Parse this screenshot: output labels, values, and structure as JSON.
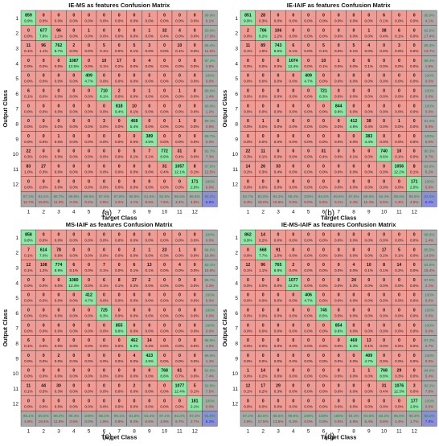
{
  "figure": {
    "xlabel": "Target Class",
    "ylabel": "Output Class",
    "tick_labels": [
      "1",
      "2",
      "3",
      "4",
      "5",
      "6",
      "7",
      "8",
      "9",
      "10",
      "11",
      "12"
    ]
  },
  "colors": {
    "diag_cell": "#90e6a6",
    "off_cell": "#f19b95",
    "summary_cell": "#a9a9a9",
    "total_cell": "#8a8fd8",
    "grid_line": "#333333",
    "text": "#111111",
    "pct_green": "#1a8a2c",
    "pct_red": "#b3201a",
    "pct_blue": "#2222cc"
  },
  "chart_data": [
    {
      "type": "heatmap",
      "title": "IE-MS as features Confusion Matrix",
      "caption": "(a)",
      "counts": [
        [
          859,
          0,
          0,
          0,
          0,
          0,
          0,
          0,
          1,
          0,
          0,
          0
        ],
        [
          0,
          677,
          96,
          0,
          1,
          0,
          0,
          0,
          1,
          32,
          4,
          0
        ],
        [
          11,
          96,
          762,
          2,
          0,
          5,
          0,
          5,
          3,
          0,
          10,
          0
        ],
        [
          0,
          0,
          0,
          1087,
          0,
          10,
          17,
          0,
          4,
          0,
          0,
          0
        ],
        [
          0,
          0,
          0,
          0,
          409,
          0,
          0,
          0,
          0,
          0,
          0,
          0
        ],
        [
          6,
          0,
          0,
          0,
          0,
          710,
          2,
          0,
          1,
          0,
          1,
          0
        ],
        [
          0,
          0,
          0,
          0,
          0,
          0,
          818,
          10,
          0,
          0,
          0,
          0
        ],
        [
          0,
          0,
          0,
          0,
          0,
          3,
          0,
          468,
          0,
          0,
          1,
          0
        ],
        [
          0,
          0,
          1,
          0,
          0,
          0,
          0,
          0,
          389,
          0,
          0,
          0
        ],
        [
          22,
          0,
          0,
          0,
          0,
          0,
          0,
          5,
          7,
          772,
          31,
          0
        ],
        [
          83,
          27,
          0,
          0,
          0,
          0,
          0,
          0,
          0,
          31,
          1057,
          8
        ],
        [
          0,
          0,
          0,
          0,
          0,
          0,
          0,
          0,
          0,
          0,
          0,
          171
        ]
      ],
      "row_pct": [
        "99.9%",
        "83.0%",
        "85.4%",
        "97.2%",
        "100%",
        "98.6%",
        "98.8%",
        "99.1%",
        "99.7%",
        "92.7%",
        "87.5%",
        "100%"
      ],
      "row_err": [
        "0.1%",
        "17.0%",
        "14.6%",
        "2.8%",
        "0.0%",
        "1.4%",
        "1.2%",
        "0.9%",
        "0.3%",
        "7.3%",
        "12.5%",
        "0.0%"
      ],
      "col_pct": [
        "87.3%",
        "84.2%",
        "88.7%",
        "99.8%",
        "99.8%",
        "97.5%",
        "97.8%",
        "95.9%",
        "91.5%",
        "92.5%",
        "95.6%",
        "95.5%"
      ],
      "col_err": [
        "12.7%",
        "15.8%",
        "11.3%",
        "0.2%",
        "0.2%",
        "2.5%",
        "2.2%",
        "4.1%",
        "8.5%",
        "7.5%",
        "4.4%",
        "4.5%"
      ],
      "total_pct": "93.2%",
      "total_err": "6.8%"
    },
    {
      "type": "heatmap",
      "title": "IE-IAIF as features Confusion Matrix",
      "caption": "(b)",
      "counts": [
        [
          851,
          28,
          0,
          0,
          0,
          0,
          0,
          0,
          0,
          6,
          0,
          0
        ],
        [
          2,
          706,
          106,
          0,
          0,
          0,
          0,
          0,
          1,
          38,
          6,
          0
        ],
        [
          11,
          89,
          743,
          6,
          0,
          5,
          0,
          5,
          4,
          0,
          3,
          0
        ],
        [
          0,
          0,
          0,
          1074,
          0,
          10,
          1,
          0,
          6,
          0,
          0,
          0
        ],
        [
          0,
          0,
          0,
          0,
          409,
          0,
          0,
          0,
          0,
          0,
          0,
          0
        ],
        [
          0,
          0,
          0,
          0,
          0,
          721,
          0,
          0,
          0,
          0,
          0,
          0
        ],
        [
          0,
          0,
          0,
          0,
          0,
          0,
          844,
          0,
          0,
          0,
          0,
          0
        ],
        [
          0,
          1,
          0,
          0,
          0,
          0,
          0,
          412,
          38,
          0,
          1,
          0
        ],
        [
          0,
          0,
          0,
          0,
          0,
          0,
          0,
          0,
          383,
          0,
          0,
          0
        ],
        [
          22,
          11,
          0,
          0,
          0,
          31,
          0,
          5,
          0,
          740,
          10,
          0
        ],
        [
          14,
          26,
          33,
          0,
          0,
          0,
          0,
          0,
          0,
          0,
          1056,
          8
        ],
        [
          0,
          0,
          0,
          0,
          0,
          0,
          0,
          0,
          0,
          0,
          0,
          171
        ]
      ],
      "row_pct": [
        "95.9%",
        "82.6%",
        "86.3%",
        "98.4%",
        "100%",
        "100%",
        "100%",
        "91.2%",
        "100%",
        "90.3%",
        "93.8%",
        "100%"
      ],
      "row_err": [
        "4.1%",
        "17.4%",
        "13.7%",
        "1.6%",
        "0.0%",
        "0.0%",
        "0.0%",
        "8.8%",
        "0.0%",
        "9.7%",
        "6.2%",
        "0.0%"
      ],
      "col_pct": [
        "94.7%",
        "82.0%",
        "84.2%",
        "99.4%",
        "100%",
        "94.5%",
        "99.9%",
        "97.6%",
        "88.6%",
        "94.4%",
        "98.6%",
        "95.5%"
      ],
      "col_err": [
        "5.3%",
        "18.0%",
        "15.8%",
        "0.6%",
        "0.0%",
        "5.5%",
        "0.1%",
        "2.4%",
        "11.4%",
        "5.6%",
        "1.4%",
        "4.5%"
      ],
      "total_pct": "93.6%",
      "total_err": "6.4%"
    },
    {
      "type": "heatmap",
      "title": "MS-IAIF as features Confusion Matrix",
      "caption": "(c)",
      "counts": [
        [
          858,
          0,
          0,
          0,
          0,
          0,
          0,
          0,
          0,
          0,
          0,
          0
        ],
        [
          7,
          614,
          78,
          0,
          0,
          0,
          0,
          2,
          1,
          23,
          1,
          0
        ],
        [
          12,
          108,
          774,
          6,
          0,
          7,
          0,
          6,
          13,
          0,
          4,
          0
        ],
        [
          0,
          0,
          0,
          1080,
          0,
          6,
          8,
          27,
          2,
          0,
          0,
          0
        ],
        [
          0,
          0,
          0,
          0,
          412,
          0,
          0,
          0,
          0,
          0,
          0,
          0
        ],
        [
          0,
          0,
          0,
          0,
          0,
          725,
          0,
          0,
          0,
          0,
          0,
          0
        ],
        [
          0,
          0,
          0,
          0,
          0,
          0,
          855,
          0,
          0,
          0,
          0,
          0
        ],
        [
          6,
          0,
          0,
          0,
          0,
          0,
          0,
          462,
          14,
          0,
          0,
          0
        ],
        [
          0,
          0,
          2,
          0,
          0,
          0,
          0,
          4,
          423,
          0,
          0,
          0
        ],
        [
          0,
          0,
          0,
          0,
          0,
          0,
          0,
          0,
          0,
          768,
          61,
          0
        ],
        [
          11,
          44,
          30,
          0,
          0,
          0,
          0,
          2,
          0,
          0,
          1077,
          5
        ],
        [
          0,
          0,
          0,
          0,
          0,
          0,
          0,
          0,
          0,
          0,
          0,
          181
        ]
      ],
      "row_pct": [
        "100%",
        "84.0%",
        "83.1%",
        "96.7%",
        "100%",
        "100%",
        "100%",
        "95.8%",
        "98.6%",
        "92.6%",
        "92.5%",
        "100%"
      ],
      "row_err": [
        "0.0%",
        "16.0%",
        "16.9%",
        "3.3%",
        "0.0%",
        "0.0%",
        "0.0%",
        "4.2%",
        "1.4%",
        "7.4%",
        "7.5%",
        "0.0%"
      ],
      "col_pct": [
        "95.1%",
        "80.6%",
        "88.2%",
        "99.4%",
        "100%",
        "98.2%",
        "99.1%",
        "91.8%",
        "93.4%",
        "97.1%",
        "94.3%",
        "97.3%"
      ],
      "col_err": [
        "4.9%",
        "19.4%",
        "11.8%",
        "0.6%",
        "0.0%",
        "1.8%",
        "0.9%",
        "8.2%",
        "6.6%",
        "2.9%",
        "5.7%",
        "2.7%"
      ],
      "total_pct": "91.8%",
      "total_err": "8.2%"
    },
    {
      "type": "heatmap",
      "title": "IE-MS-IAIF as features Confusion Matrix",
      "caption": "(d)",
      "counts": [
        [
          862,
          14,
          0,
          0,
          0,
          0,
          0,
          0,
          0,
          0,
          0,
          0
        ],
        [
          0,
          668,
          91,
          0,
          0,
          0,
          0,
          0,
          0,
          17,
          5,
          0
        ],
        [
          12,
          96,
          765,
          2,
          0,
          0,
          0,
          4,
          10,
          8,
          14,
          0
        ],
        [
          0,
          0,
          0,
          1077,
          0,
          0,
          0,
          24,
          0,
          0,
          0,
          0
        ],
        [
          0,
          0,
          0,
          0,
          406,
          0,
          0,
          0,
          0,
          0,
          0,
          0
        ],
        [
          0,
          0,
          0,
          0,
          0,
          745,
          0,
          0,
          0,
          0,
          0,
          0
        ],
        [
          0,
          0,
          0,
          0,
          0,
          0,
          854,
          0,
          0,
          0,
          0,
          0
        ],
        [
          0,
          0,
          0,
          0,
          0,
          0,
          0,
          469,
          13,
          0,
          0,
          0
        ],
        [
          0,
          0,
          0,
          0,
          0,
          0,
          0,
          0,
          409,
          0,
          0,
          0
        ],
        [
          1,
          14,
          0,
          0,
          0,
          0,
          0,
          1,
          1,
          768,
          29,
          0
        ],
        [
          12,
          17,
          29,
          0,
          0,
          0,
          0,
          0,
          0,
          31,
          1076,
          3
        ],
        [
          0,
          0,
          0,
          0,
          0,
          0,
          0,
          0,
          0,
          0,
          0,
          177
        ]
      ],
      "row_pct": [
        "98.6%",
        "85.5%",
        "84.6%",
        "97.9%",
        "100%",
        "100%",
        "100%",
        "97.3%",
        "100%",
        "94.6%",
        "92.2%",
        "100%"
      ],
      "row_err": [
        "1.4%",
        "14.5%",
        "15.4%",
        "2.1%",
        "0.0%",
        "0.0%",
        "0.0%",
        "2.7%",
        "0.0%",
        "5.4%",
        "7.8%",
        "0.0%"
      ],
      "col_pct": [
        "97.2%",
        "82.5%",
        "86.5%",
        "99.8%",
        "100%",
        "100%",
        "100%",
        "94.2%",
        "94.6%",
        "93.2%",
        "95.6%",
        "98.3%"
      ],
      "col_err": [
        "2.8%",
        "17.5%",
        "13.5%",
        "0.2%",
        "0.0%",
        "0.0%",
        "0.0%",
        "5.8%",
        "5.4%",
        "6.8%",
        "4.4%",
        "1.7%"
      ],
      "total_pct": "92.2%",
      "total_err": "7.8%"
    }
  ]
}
